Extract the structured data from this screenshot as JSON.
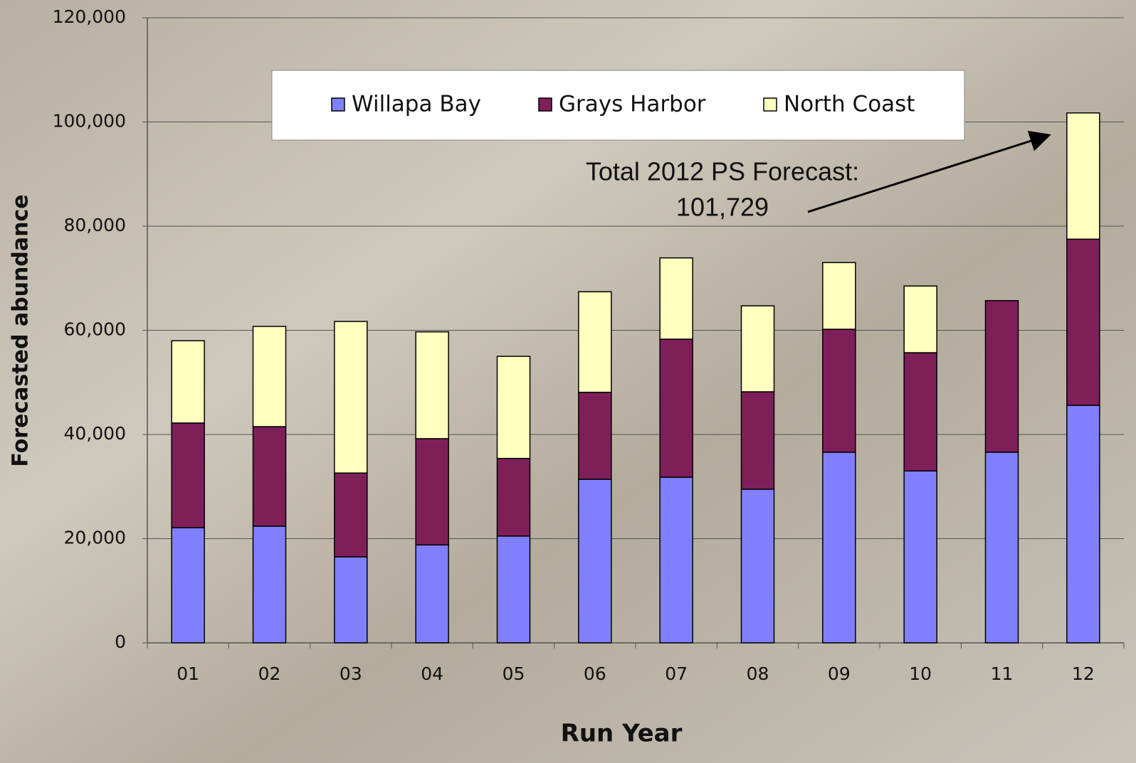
{
  "chart_data": {
    "type": "stacked_bar",
    "x_label": "Run Year",
    "y_label": "Forecasted abundance",
    "annotation": {
      "line1": "Total 2012 PS Forecast:",
      "line2": "101,729"
    },
    "categories": [
      "01",
      "02",
      "03",
      "04",
      "05",
      "06",
      "07",
      "08",
      "09",
      "10",
      "11",
      "12"
    ],
    "series": [
      {
        "name": "Willapa Bay",
        "color": "#8080ff",
        "values": [
          22100,
          22400,
          16500,
          18800,
          20500,
          31400,
          31800,
          29500,
          36600,
          33000,
          36600,
          45600
        ]
      },
      {
        "name": "Grays Harbor",
        "color": "#7f1f5a",
        "values": [
          20100,
          19100,
          16100,
          20400,
          14900,
          16700,
          26500,
          18700,
          23600,
          22700,
          29100,
          31900
        ]
      },
      {
        "name": "North Coast",
        "color": "#ffffc0",
        "values": [
          15800,
          19250,
          29100,
          20500,
          19600,
          19300,
          15600,
          16500,
          12800,
          12800,
          0,
          24229
        ]
      }
    ],
    "ylim": [
      0,
      120000
    ],
    "yticks": [
      0,
      {
        "value": 20000,
        "label": "20,000"
      },
      {
        "value": 40000,
        "label": "40,000"
      },
      {
        "value": 60000,
        "label": "60,000"
      },
      {
        "value": 80000,
        "label": "80,000"
      },
      {
        "value": 100000,
        "label": "100,000"
      },
      {
        "value": 120000,
        "label": "120,000"
      }
    ],
    "grid": true
  }
}
